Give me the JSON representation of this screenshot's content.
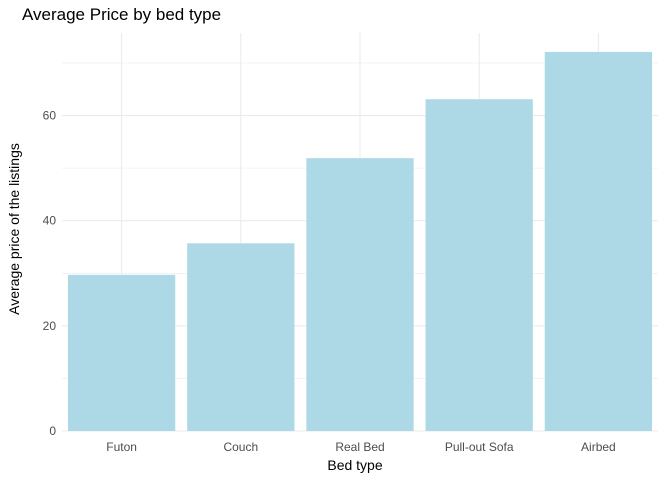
{
  "chart_data": {
    "type": "bar",
    "title": "Average Price by bed type",
    "xlabel": "Bed type",
    "ylabel": "Average price of the listings",
    "categories": [
      "Futon",
      "Couch",
      "Real Bed",
      "Pull-out Sofa",
      "Airbed"
    ],
    "values": [
      29.7,
      35.7,
      51.9,
      63.1,
      72.1
    ],
    "yticks": [
      0,
      20,
      40,
      60
    ],
    "ylim": [
      0,
      75.7
    ],
    "grid": true,
    "legend": "none",
    "colors": {
      "bar": "#add8e6",
      "grid": "#ebebeb",
      "tick_text": "#4d4d4d"
    }
  }
}
